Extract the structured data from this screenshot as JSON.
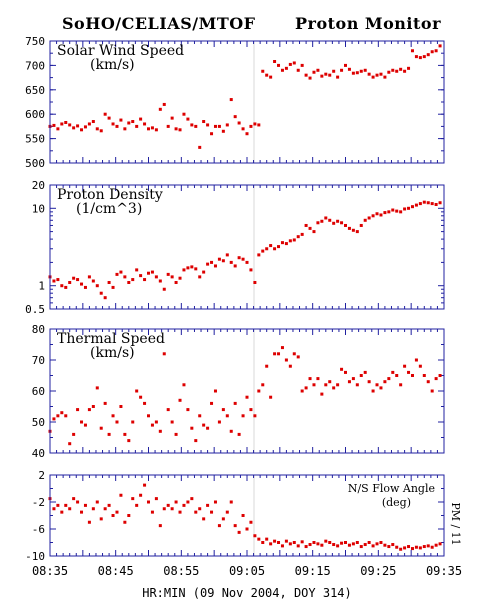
{
  "header": {
    "left": "SoHO/CELIAS/MTOF",
    "right": "Proton Monitor"
  },
  "side_label": "PM / 11",
  "xaxis": {
    "ticks": [
      "08:35",
      "08:45",
      "08:55",
      "09:05",
      "09:15",
      "09:25",
      "09:35"
    ],
    "label": "HR:MIN (09 Nov 2004, DOY 314)"
  },
  "colors": {
    "points": "#dd0000",
    "frame": "#2020a0",
    "gap": "#d8d8d8"
  },
  "chart_data": [
    {
      "type": "scatter",
      "title": "Solar Wind Speed",
      "unit": "(km/s)",
      "ylim": [
        500,
        750
      ],
      "yscale": "linear",
      "yticks": [
        "750",
        "700",
        "650",
        "600",
        "550",
        "500"
      ],
      "x_minutes": [
        0,
        1,
        2,
        3,
        4,
        5,
        6,
        7,
        8,
        9,
        10,
        11,
        12,
        13,
        14,
        15,
        16,
        17,
        18,
        19,
        20,
        21,
        22,
        23,
        24,
        25,
        26,
        27,
        28,
        29,
        30,
        31,
        32,
        33,
        34,
        35,
        36,
        37,
        38,
        39,
        40,
        41,
        42,
        43,
        44,
        45,
        46,
        47,
        48,
        49,
        50,
        51,
        52,
        53,
        54,
        55,
        56,
        57,
        58,
        59,
        60,
        61,
        62,
        63,
        64,
        65,
        66,
        67,
        68,
        69,
        70,
        71,
        72,
        73,
        74,
        75,
        76,
        77,
        78,
        79,
        80,
        81,
        82,
        83,
        84,
        85,
        86,
        87,
        88,
        89,
        90,
        91,
        92,
        93,
        94,
        95,
        96,
        97,
        98,
        99
      ],
      "values": [
        575,
        577,
        570,
        580,
        583,
        578,
        572,
        576,
        568,
        574,
        580,
        585,
        570,
        566,
        600,
        592,
        580,
        575,
        588,
        570,
        582,
        585,
        575,
        590,
        580,
        570,
        572,
        568,
        610,
        620,
        575,
        592,
        570,
        568,
        600,
        590,
        578,
        575,
        532,
        585,
        578,
        560,
        575,
        575,
        565,
        578,
        630,
        595,
        582,
        570,
        560,
        575,
        580,
        578,
        688,
        680,
        676,
        708,
        700,
        690,
        694,
        702,
        705,
        690,
        700,
        680,
        674,
        686,
        690,
        678,
        682,
        680,
        688,
        676,
        690,
        700,
        692,
        684,
        685,
        688,
        690,
        682,
        676,
        680,
        682,
        676,
        686,
        690,
        688,
        692,
        688,
        694,
        730,
        718,
        716,
        718,
        722,
        728,
        730,
        740
      ],
      "x_unit": "minutes after 08:35"
    },
    {
      "type": "scatter",
      "title": "Proton Density",
      "unit": "(1/cm^3)",
      "ylim": [
        0.5,
        20
      ],
      "yscale": "log",
      "yticks": [
        "20",
        "10",
        "1",
        "0.5"
      ],
      "x_minutes": [
        0,
        1,
        2,
        3,
        4,
        5,
        6,
        7,
        8,
        9,
        10,
        11,
        12,
        13,
        14,
        15,
        16,
        17,
        18,
        19,
        20,
        21,
        22,
        23,
        24,
        25,
        26,
        27,
        28,
        29,
        30,
        31,
        32,
        33,
        34,
        35,
        36,
        37,
        38,
        39,
        40,
        41,
        42,
        43,
        44,
        45,
        46,
        47,
        48,
        49,
        50,
        51,
        52,
        53,
        54,
        55,
        56,
        57,
        58,
        59,
        60,
        61,
        62,
        63,
        64,
        65,
        66,
        67,
        68,
        69,
        70,
        71,
        72,
        73,
        74,
        75,
        76,
        77,
        78,
        79,
        80,
        81,
        82,
        83,
        84,
        85,
        86,
        87,
        88,
        89,
        90,
        91,
        92,
        93,
        94,
        95,
        96,
        97,
        98,
        99
      ],
      "values": [
        1.3,
        1.15,
        1.2,
        1.0,
        0.95,
        1.1,
        1.25,
        1.2,
        1.05,
        0.95,
        1.3,
        1.15,
        1.0,
        0.8,
        0.7,
        1.1,
        0.95,
        1.4,
        1.5,
        1.3,
        1.1,
        1.2,
        1.6,
        1.35,
        1.2,
        1.45,
        1.5,
        1.3,
        1.15,
        0.9,
        1.4,
        1.3,
        1.1,
        1.25,
        1.6,
        1.7,
        1.75,
        1.65,
        1.3,
        1.5,
        1.9,
        2.0,
        1.8,
        2.2,
        2.1,
        2.5,
        2.0,
        1.8,
        2.3,
        2.2,
        2.0,
        1.6,
        1.1,
        2.5,
        2.8,
        3.0,
        3.3,
        3.0,
        3.2,
        3.6,
        3.5,
        3.8,
        3.9,
        4.3,
        4.6,
        6.0,
        5.5,
        5.0,
        6.5,
        6.8,
        7.5,
        7.0,
        6.4,
        6.8,
        6.5,
        6.0,
        5.5,
        5.2,
        5.0,
        6.0,
        7.0,
        7.5,
        8.0,
        8.5,
        8.2,
        8.8,
        9.0,
        9.5,
        9.2,
        9.0,
        9.8,
        10.0,
        10.5,
        11.0,
        11.5,
        12.0,
        11.8,
        11.5,
        11.2,
        11.8
      ],
      "x_unit": "minutes after 08:35"
    },
    {
      "type": "scatter",
      "title": "Thermal Speed",
      "unit": "(km/s)",
      "ylim": [
        40,
        80
      ],
      "yscale": "linear",
      "yticks": [
        "80",
        "70",
        "60",
        "50",
        "40"
      ],
      "x_minutes": [
        0,
        1,
        2,
        3,
        4,
        5,
        6,
        7,
        8,
        9,
        10,
        11,
        12,
        13,
        14,
        15,
        16,
        17,
        18,
        19,
        20,
        21,
        22,
        23,
        24,
        25,
        26,
        27,
        28,
        29,
        30,
        31,
        32,
        33,
        34,
        35,
        36,
        37,
        38,
        39,
        40,
        41,
        42,
        43,
        44,
        45,
        46,
        47,
        48,
        49,
        50,
        51,
        52,
        53,
        54,
        55,
        56,
        57,
        58,
        59,
        60,
        61,
        62,
        63,
        64,
        65,
        66,
        67,
        68,
        69,
        70,
        71,
        72,
        73,
        74,
        75,
        76,
        77,
        78,
        79,
        80,
        81,
        82,
        83,
        84,
        85,
        86,
        87,
        88,
        89,
        90,
        91,
        92,
        93,
        94,
        95,
        96,
        97,
        98,
        99
      ],
      "values": [
        47,
        51,
        52,
        53,
        52,
        43,
        46,
        54,
        50,
        49,
        54,
        55,
        61,
        48,
        56,
        46,
        52,
        50,
        55,
        46,
        44,
        50,
        60,
        58,
        56,
        52,
        49,
        50,
        47,
        72,
        54,
        50,
        46,
        57,
        62,
        54,
        48,
        44,
        52,
        49,
        48,
        56,
        60,
        50,
        54,
        52,
        47,
        56,
        46,
        52,
        58,
        54,
        52,
        60,
        62,
        68,
        58,
        72,
        72,
        74,
        70,
        68,
        72,
        71,
        60,
        61,
        64,
        62,
        64,
        59,
        62,
        63,
        61,
        62,
        67,
        66,
        63,
        64,
        62,
        65,
        66,
        63,
        60,
        62,
        61,
        63,
        64,
        66,
        65,
        62,
        68,
        66,
        65,
        70,
        68,
        65,
        63,
        60,
        64,
        65
      ],
      "x_unit": "minutes after 08:35"
    },
    {
      "type": "scatter",
      "title": "N/S Flow Angle",
      "unit": "(deg)",
      "ylim": [
        -10,
        2
      ],
      "yscale": "linear",
      "yticks": [
        "2",
        "-2",
        "-6",
        "-10"
      ],
      "x_minutes": [
        0,
        1,
        2,
        3,
        4,
        5,
        6,
        7,
        8,
        9,
        10,
        11,
        12,
        13,
        14,
        15,
        16,
        17,
        18,
        19,
        20,
        21,
        22,
        23,
        24,
        25,
        26,
        27,
        28,
        29,
        30,
        31,
        32,
        33,
        34,
        35,
        36,
        37,
        38,
        39,
        40,
        41,
        42,
        43,
        44,
        45,
        46,
        47,
        48,
        49,
        50,
        51,
        52,
        53,
        54,
        55,
        56,
        57,
        58,
        59,
        60,
        61,
        62,
        63,
        64,
        65,
        66,
        67,
        68,
        69,
        70,
        71,
        72,
        73,
        74,
        75,
        76,
        77,
        78,
        79,
        80,
        81,
        82,
        83,
        84,
        85,
        86,
        87,
        88,
        89,
        90,
        91,
        92,
        93,
        94,
        95,
        96,
        97,
        98,
        99
      ],
      "values": [
        -1.5,
        -3.0,
        -2.5,
        -3.5,
        -2.5,
        -3.0,
        -1.5,
        -2.0,
        -3.5,
        -2.5,
        -5.0,
        -3.0,
        -2.0,
        -4.5,
        -3.0,
        -2.5,
        -4.0,
        -3.5,
        -1.0,
        -5.0,
        -4.0,
        -1.5,
        -2.5,
        -1.0,
        0.5,
        -2.0,
        -3.5,
        -1.5,
        -5.5,
        -3.0,
        -2.5,
        -3.0,
        -2.0,
        -3.5,
        -2.5,
        -2.0,
        -1.5,
        -3.5,
        -3.0,
        -4.5,
        -2.5,
        -3.5,
        -2.0,
        -5.5,
        -4.5,
        -3.5,
        -2.0,
        -5.5,
        -6.5,
        -4.0,
        -6.0,
        -5.0,
        -7.0,
        -7.5,
        -8.0,
        -7.5,
        -8.2,
        -7.8,
        -8.0,
        -8.5,
        -7.8,
        -8.2,
        -8.0,
        -8.5,
        -7.9,
        -8.6,
        -8.3,
        -8.0,
        -8.2,
        -8.4,
        -7.8,
        -8.0,
        -8.3,
        -8.5,
        -8.1,
        -8.0,
        -8.4,
        -8.2,
        -8.0,
        -8.6,
        -8.3,
        -8.0,
        -8.5,
        -8.2,
        -8.0,
        -8.4,
        -8.6,
        -8.3,
        -8.7,
        -9.0,
        -8.8,
        -8.6,
        -8.9,
        -8.7,
        -8.8,
        -8.6,
        -8.5,
        -8.7,
        -8.4,
        -8.2
      ],
      "x_unit": "minutes after 08:35"
    }
  ]
}
